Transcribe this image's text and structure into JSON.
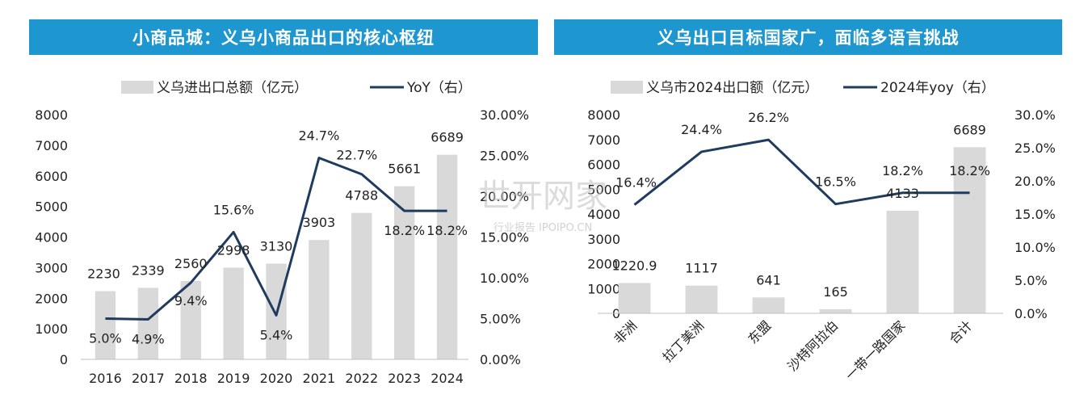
{
  "panels": {
    "left_title": "小商品城：义乌小商品出口的核心枢纽",
    "right_title": "义乌出口目标国家广，面临多语言挑战"
  },
  "watermark": {
    "main": "世开网家",
    "sub": "行业报告 IPOIPO.CN"
  },
  "colors": {
    "bar": "#d9d9d9",
    "line": "#1f3b5e",
    "banner": "#1e96d0"
  },
  "chart_data": [
    {
      "type": "bar+line",
      "categories": [
        "2016",
        "2017",
        "2018",
        "2019",
        "2020",
        "2021",
        "2022",
        "2023",
        "2024"
      ],
      "series": [
        {
          "name": "义乌进出口总额（亿元）",
          "type": "bar",
          "axis": "left",
          "values": [
            2230,
            2339,
            2560,
            2998,
            3130,
            3903,
            4788,
            5661,
            6689
          ],
          "labels": [
            "2230",
            "2339",
            "2560",
            "2998",
            "3130",
            "3903",
            "4788",
            "5661",
            "6689"
          ]
        },
        {
          "name": "YoY（右）",
          "type": "line",
          "axis": "right",
          "values": [
            5.0,
            4.9,
            9.4,
            15.6,
            5.4,
            24.7,
            22.7,
            18.2,
            18.2
          ],
          "labels": [
            "5.0%",
            "4.9%",
            "9.4%",
            "15.6%",
            "5.4%",
            "24.7%",
            "22.7%",
            "18.2%",
            "18.2%"
          ]
        }
      ],
      "y_left": {
        "min": 0,
        "max": 8000,
        "ticks": [
          "0",
          "1000",
          "2000",
          "3000",
          "4000",
          "5000",
          "6000",
          "7000",
          "8000"
        ]
      },
      "y_right": {
        "min": 0,
        "max": 30,
        "ticks": [
          "0.00%",
          "5.00%",
          "10.00%",
          "15.00%",
          "20.00%",
          "25.00%",
          "30.00%"
        ]
      },
      "legend_position": "top"
    },
    {
      "type": "bar+line",
      "categories": [
        "非洲",
        "拉丁美洲",
        "东盟",
        "沙特阿拉伯",
        "一带一路国家",
        "合计"
      ],
      "series": [
        {
          "name": "义乌市2024出口额（亿元）",
          "type": "bar",
          "axis": "left",
          "values": [
            1220.9,
            1117,
            641,
            165,
            4133,
            6689
          ],
          "labels": [
            "1220.9",
            "1117",
            "641",
            "165",
            "4133",
            "6689"
          ]
        },
        {
          "name": "2024年yoy（右）",
          "type": "line",
          "axis": "right",
          "values": [
            16.4,
            24.4,
            26.2,
            16.5,
            18.2,
            18.2
          ],
          "labels": [
            "16.4%",
            "24.4%",
            "26.2%",
            "16.5%",
            "18.2%",
            "18.2%"
          ]
        }
      ],
      "y_left": {
        "min": 0,
        "max": 8000,
        "ticks": [
          "0",
          "1000",
          "2000",
          "3000",
          "4000",
          "5000",
          "6000",
          "7000",
          "8000"
        ]
      },
      "y_right": {
        "min": 0,
        "max": 30,
        "ticks": [
          "0.0%",
          "5.0%",
          "10.0%",
          "15.0%",
          "20.0%",
          "25.0%",
          "30.0%"
        ]
      },
      "legend_position": "top"
    }
  ]
}
